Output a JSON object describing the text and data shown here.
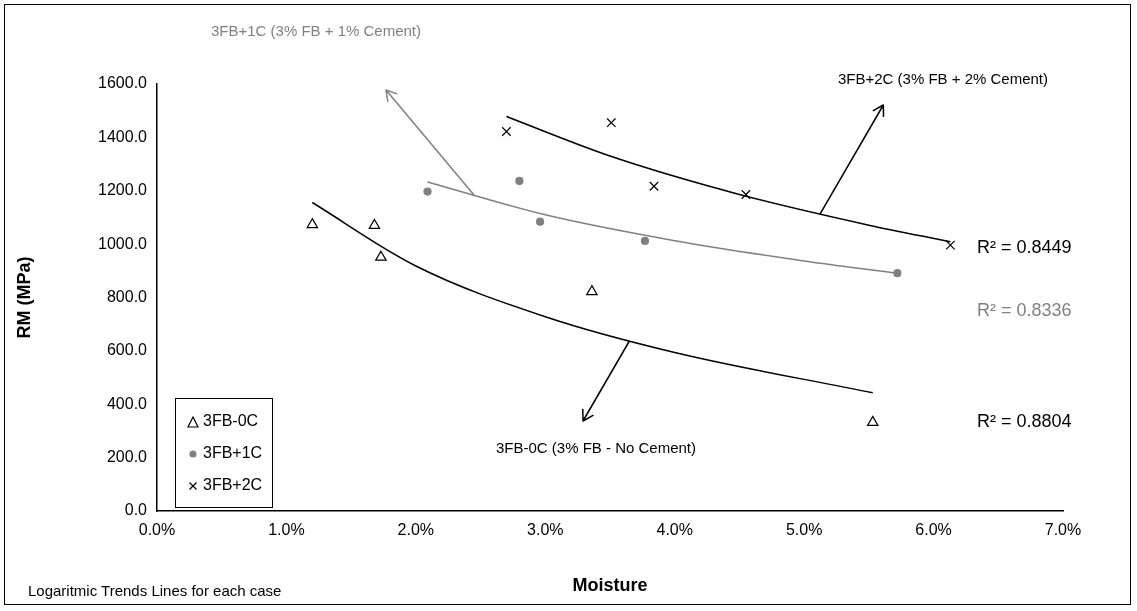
{
  "chart_data": {
    "type": "scatter",
    "xlabel": "Moisture",
    "ylabel": "RM (MPa)",
    "xlim": [
      0,
      7
    ],
    "xticks": [
      {
        "value": 0,
        "label": "0.0%"
      },
      {
        "value": 1,
        "label": "1.0%"
      },
      {
        "value": 2,
        "label": "2.0%"
      },
      {
        "value": 3,
        "label": "3.0%"
      },
      {
        "value": 4,
        "label": "4.0%"
      },
      {
        "value": 5,
        "label": "5.0%"
      },
      {
        "value": 6,
        "label": "6.0%"
      },
      {
        "value": 7,
        "label": "7.0%"
      }
    ],
    "ylim": [
      0,
      1600
    ],
    "yticks": [
      {
        "value": 0,
        "label": "0.0"
      },
      {
        "value": 200,
        "label": "200.0"
      },
      {
        "value": 400,
        "label": "400.0"
      },
      {
        "value": 600,
        "label": "600.0"
      },
      {
        "value": 800,
        "label": "800.0"
      },
      {
        "value": 1000,
        "label": "1000.0"
      },
      {
        "value": 1200,
        "label": "1200.0"
      },
      {
        "value": 1400,
        "label": "1400.0"
      },
      {
        "value": 1600,
        "label": "1600.0"
      }
    ],
    "grid": false,
    "legend": "bottom left",
    "series": [
      {
        "name": "3FB-0C",
        "color": "#000000",
        "marker": "triangle",
        "x": [
          1.2,
          1.68,
          1.73,
          3.36,
          5.53
        ],
        "values": [
          1073,
          1070,
          951,
          822,
          332
        ]
      },
      {
        "name": "3FB+1C",
        "color": "#808080",
        "marker": "circle",
        "x": [
          2.09,
          2.8,
          2.96,
          3.77,
          5.72
        ],
        "values": [
          1197,
          1237,
          1084,
          1012,
          891
        ]
      },
      {
        "name": "3FB+2C",
        "color": "#000000",
        "marker": "cross",
        "x": [
          2.7,
          3.51,
          3.84,
          4.55,
          6.13
        ],
        "values": [
          1422,
          1455,
          1217,
          1186,
          996
        ]
      },
      {
        "type": "line",
        "color": "#000000",
        "marker": "none",
        "x": [
          1.2,
          2,
          3,
          4,
          5.53
        ],
        "values": [
          1156,
          918,
          728,
          594,
          443
        ]
      },
      {
        "type": "line",
        "color": "#808080",
        "marker": "none",
        "x": [
          2.09,
          3,
          4,
          5,
          5.72
        ],
        "values": [
          1233,
          1110,
          1013,
          937,
          891
        ]
      },
      {
        "type": "line",
        "color": "#000000",
        "marker": "none",
        "x": [
          2.7,
          3.5,
          4.5,
          5.5,
          6.13
        ],
        "values": [
          1478,
          1330,
          1186,
          1071,
          1009
        ]
      }
    ],
    "annotations": [
      "3FB+1C (3% FB + 1% Cement)",
      {
        "text": "3FB+2C (3% FB + 2% Cement)",
        "x": 5.12,
        "y": 1112
      },
      {
        "text": "3FB-0C (3% FB - No Cement)",
        "x": 3.65,
        "y": 637
      },
      "R² = 0.8449",
      "R² = 0.8336",
      "R² = 0.8804",
      "Logaritmic Trends Lines for each case"
    ]
  }
}
